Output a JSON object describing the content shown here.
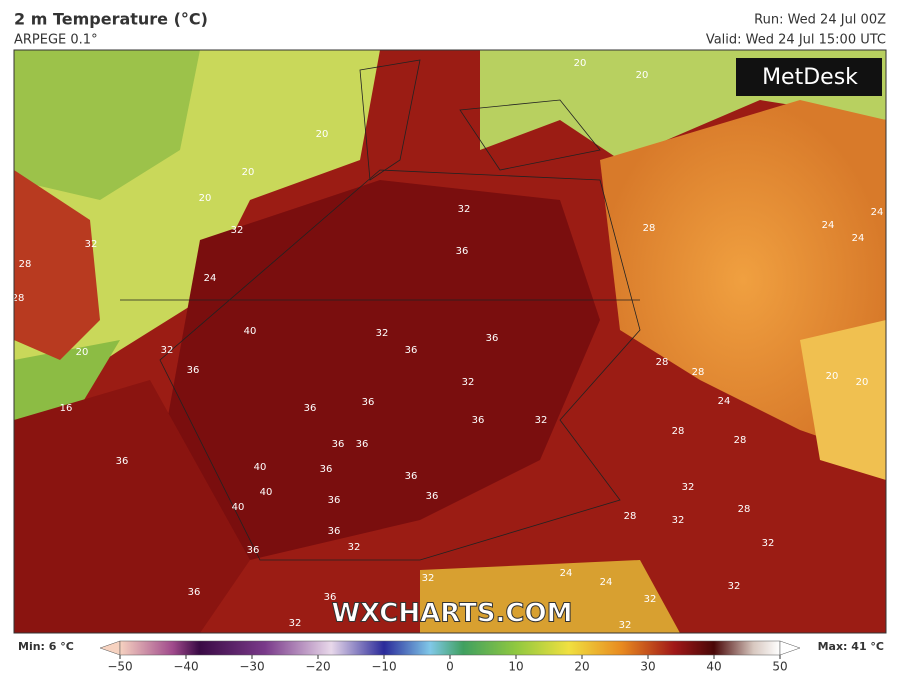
{
  "header": {
    "title": "2 m Temperature (°C)",
    "model": "ARPEGE 0.1°",
    "run": "Run: Wed 24 Jul 00Z",
    "valid": "Valid: Wed 24 Jul 15:00 UTC"
  },
  "logo": "MetDesk",
  "watermark": "WXCHARTS.COM",
  "contour_labels": [
    20,
    20,
    20,
    20,
    20,
    32,
    32,
    28,
    28,
    24,
    32,
    36,
    28,
    24,
    24,
    24,
    40,
    32,
    36,
    36,
    32,
    20,
    36,
    32,
    28,
    28,
    20,
    20,
    16,
    36,
    36,
    36,
    32,
    24,
    28,
    28,
    36,
    36,
    36,
    40,
    36,
    36,
    40,
    36,
    36,
    32,
    40,
    28,
    32,
    28,
    36,
    32,
    36,
    32,
    32,
    24,
    24,
    32,
    36,
    36,
    32,
    32,
    32
  ],
  "legend": {
    "min": "Min: 6 °C",
    "max": "Max: 41 °C",
    "ticks": [
      {
        "value": -50,
        "label": "−50"
      },
      {
        "value": -40,
        "label": "−40"
      },
      {
        "value": -30,
        "label": "−30"
      },
      {
        "value": -20,
        "label": "−20"
      },
      {
        "value": -10,
        "label": "−10"
      },
      0,
      10,
      20,
      30,
      40,
      50
    ],
    "lim": [
      -50,
      50
    ]
  }
}
